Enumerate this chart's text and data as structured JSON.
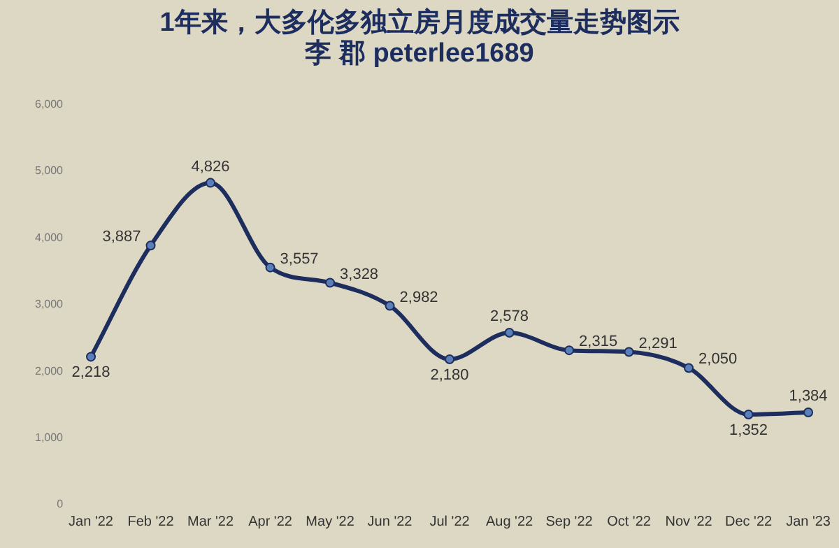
{
  "chart_data": {
    "type": "line",
    "title": "1年来，大多伦多独立房月度成交量走势图示",
    "subtitle": "李 郡 peterlee1689",
    "categories": [
      "Jan '22",
      "Feb '22",
      "Mar '22",
      "Apr '22",
      "May '22",
      "Jun '22",
      "Jul '22",
      "Aug '22",
      "Sep '22",
      "Oct '22",
      "Nov '22",
      "Dec '22",
      "Jan '23"
    ],
    "series": [
      {
        "color": "#1c2d5e",
        "values": [
          2218,
          3887,
          4826,
          3557,
          3328,
          2982,
          2180,
          2578,
          2315,
          2291,
          2050,
          1352,
          1384
        ]
      }
    ],
    "ylim": [
      0,
      6000
    ],
    "yticks": [
      {
        "value": 0,
        "label": "0"
      },
      {
        "value": 1000,
        "label": "1,000"
      },
      {
        "value": 2000,
        "label": "2,000"
      },
      {
        "value": 3000,
        "label": "3,000"
      },
      {
        "value": 4000,
        "label": "4,000"
      },
      {
        "value": 5000,
        "label": "5,000"
      },
      {
        "value": 6000,
        "label": "6,000"
      }
    ],
    "value_labels": [
      "2,218",
      "3,887",
      "4,826",
      "3,557",
      "3,328",
      "2,982",
      "2,180",
      "2,578",
      "2,315",
      "2,291",
      "2,050",
      "1,352",
      "1,384"
    ],
    "grid": false,
    "legend": false,
    "marker": "circle",
    "line_style": "solid"
  }
}
